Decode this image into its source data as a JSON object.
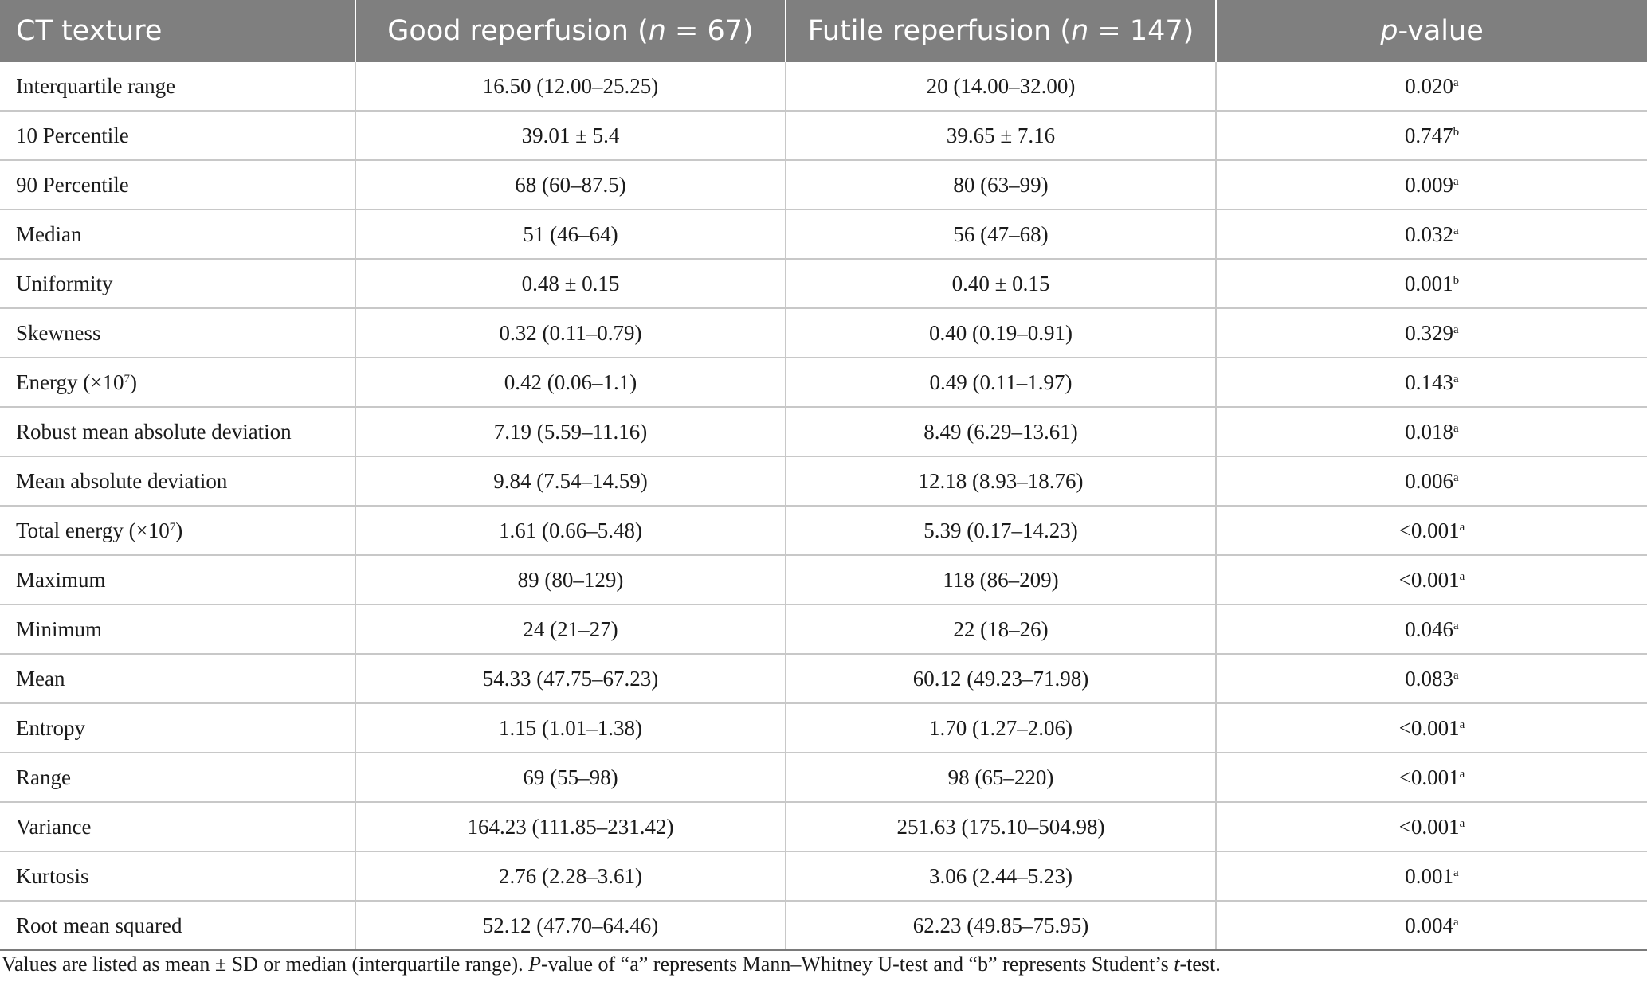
{
  "header": {
    "col1": "CT texture",
    "col2_text": "Good reperfusion (",
    "col2_n": "n",
    "col2_val": " = 67)",
    "col3_text": "Futile reperfusion (",
    "col3_n": "n",
    "col3_val": " = 147)",
    "col4_p": "p",
    "col4_text": "-value"
  },
  "rows": [
    {
      "feature": "Interquartile range",
      "feature_sup": "",
      "feature_close": "",
      "good": "16.50 (12.00–25.25)",
      "futile": "20 (14.00–32.00)",
      "p": "0.020",
      "sup": "a"
    },
    {
      "feature": "10 Percentile",
      "feature_sup": "",
      "feature_close": "",
      "good": "39.01 ± 5.4",
      "futile": "39.65 ± 7.16",
      "p": "0.747",
      "sup": "b"
    },
    {
      "feature": "90 Percentile",
      "feature_sup": "",
      "feature_close": "",
      "good": "68 (60–87.5)",
      "futile": "80 (63–99)",
      "p": "0.009",
      "sup": "a"
    },
    {
      "feature": "Median",
      "feature_sup": "",
      "feature_close": "",
      "good": "51 (46–64)",
      "futile": "56 (47–68)",
      "p": "0.032",
      "sup": "a"
    },
    {
      "feature": "Uniformity",
      "feature_sup": "",
      "feature_close": "",
      "good": "0.48 ± 0.15",
      "futile": "0.40 ± 0.15",
      "p": "0.001",
      "sup": "b"
    },
    {
      "feature": "Skewness",
      "feature_sup": "",
      "feature_close": "",
      "good": "0.32 (0.11–0.79)",
      "futile": "0.40 (0.19–0.91)",
      "p": "0.329",
      "sup": "a"
    },
    {
      "feature": "Energy (×10",
      "feature_sup": "7",
      "feature_close": ")",
      "good": "0.42 (0.06–1.1)",
      "futile": "0.49 (0.11–1.97)",
      "p": "0.143",
      "sup": "a"
    },
    {
      "feature": "Robust mean absolute deviation",
      "feature_sup": "",
      "feature_close": "",
      "good": "7.19 (5.59–11.16)",
      "futile": "8.49 (6.29–13.61)",
      "p": "0.018",
      "sup": "a"
    },
    {
      "feature": "Mean absolute deviation",
      "feature_sup": "",
      "feature_close": "",
      "good": "9.84 (7.54–14.59)",
      "futile": "12.18 (8.93–18.76)",
      "p": "0.006",
      "sup": "a"
    },
    {
      "feature": "Total energy (×10",
      "feature_sup": "7",
      "feature_close": ")",
      "good": "1.61 (0.66–5.48)",
      "futile": "5.39 (0.17–14.23)",
      "p": "<0.001",
      "sup": "a"
    },
    {
      "feature": "Maximum",
      "feature_sup": "",
      "feature_close": "",
      "good": "89 (80–129)",
      "futile": "118 (86–209)",
      "p": "<0.001",
      "sup": "a"
    },
    {
      "feature": "Minimum",
      "feature_sup": "",
      "feature_close": "",
      "good": "24 (21–27)",
      "futile": "22 (18–26)",
      "p": "0.046",
      "sup": "a"
    },
    {
      "feature": "Mean",
      "feature_sup": "",
      "feature_close": "",
      "good": "54.33 (47.75–67.23)",
      "futile": "60.12 (49.23–71.98)",
      "p": "0.083",
      "sup": "a"
    },
    {
      "feature": "Entropy",
      "feature_sup": "",
      "feature_close": "",
      "good": "1.15 (1.01–1.38)",
      "futile": "1.70 (1.27–2.06)",
      "p": "<0.001",
      "sup": "a"
    },
    {
      "feature": "Range",
      "feature_sup": "",
      "feature_close": "",
      "good": "69 (55–98)",
      "futile": "98 (65–220)",
      "p": "<0.001",
      "sup": "a"
    },
    {
      "feature": "Variance",
      "feature_sup": "",
      "feature_close": "",
      "good": "164.23 (111.85–231.42)",
      "futile": "251.63 (175.10–504.98)",
      "p": "<0.001",
      "sup": "a"
    },
    {
      "feature": "Kurtosis",
      "feature_sup": "",
      "feature_close": "",
      "good": "2.76 (2.28–3.61)",
      "futile": "3.06 (2.44–5.23)",
      "p": "0.001",
      "sup": "a"
    },
    {
      "feature": "Root mean squared",
      "feature_sup": "",
      "feature_close": "",
      "good": "52.12 (47.70–64.46)",
      "futile": "62.23 (49.85–75.95)",
      "p": "0.004",
      "sup": "a"
    }
  ],
  "footnote": {
    "part1": "Values are listed as mean ± SD or median (interquartile range). ",
    "p_italic": "P",
    "part2": "-value of “a” represents Mann–Whitney U-test and “b” represents Student’s ",
    "t_italic": "t",
    "part3": "-test."
  },
  "colors": {
    "header_bg": "#7f7f7f",
    "header_text": "#ffffff",
    "grid_line": "#c8c8c8"
  }
}
